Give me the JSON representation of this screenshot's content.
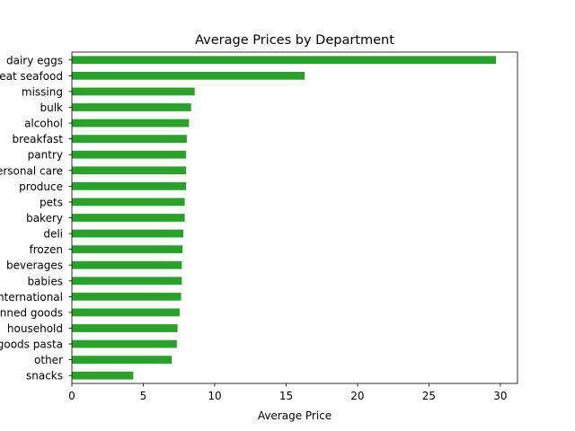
{
  "chart_data": {
    "type": "bar",
    "orientation": "horizontal",
    "title": "Average Prices by Department",
    "xlabel": "Average Price",
    "ylabel": "",
    "xlim": [
      0,
      31.2
    ],
    "xticks": [
      0,
      5,
      10,
      15,
      20,
      25,
      30
    ],
    "grid": false,
    "legend": "none",
    "bar_color": "#2ca02c",
    "categories": [
      "dairy eggs",
      "meat seafood",
      "missing",
      "bulk",
      "alcohol",
      "breakfast",
      "pantry",
      "personal care",
      "produce",
      "pets",
      "bakery",
      "deli",
      "frozen",
      "beverages",
      "babies",
      "international",
      "canned goods",
      "household",
      "dry goods pasta",
      "other",
      "snacks"
    ],
    "values": [
      29.7,
      16.3,
      8.6,
      8.35,
      8.2,
      8.05,
      8.0,
      8.0,
      8.0,
      7.9,
      7.9,
      7.8,
      7.75,
      7.7,
      7.7,
      7.65,
      7.55,
      7.4,
      7.35,
      7.0,
      4.3
    ]
  }
}
